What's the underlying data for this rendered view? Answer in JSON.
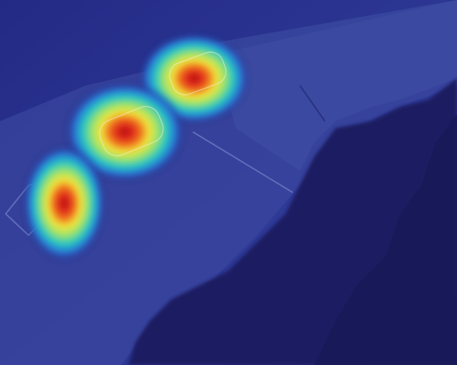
{
  "image": {
    "kind": "aerial-heatmap-overlay",
    "colors": {
      "colormap_low": "#1b1f7a",
      "colormap_mid": "#24c7c2",
      "colormap_high_warm": "#f2e43a",
      "colormap_peak": "#d81e1e",
      "ground_dark": "#1a1e6a",
      "ground_light": "#3a4aa0",
      "road": "#3c4fa6",
      "tree_shadow": "#141752"
    },
    "hotspots": [
      {
        "id": "hotspot-vehicle-1",
        "intensity": 1.0
      },
      {
        "id": "hotspot-vehicle-2",
        "intensity": 1.0
      },
      {
        "id": "hotspot-vehicle-3",
        "intensity": 0.95
      }
    ]
  }
}
